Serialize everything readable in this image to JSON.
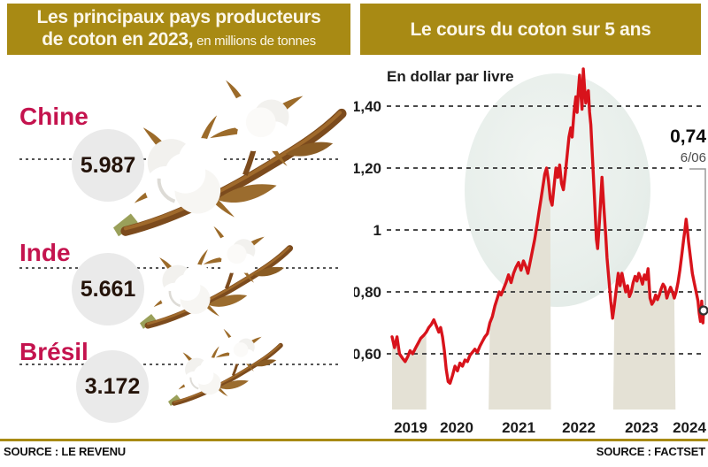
{
  "header": {
    "left_title_line1": "Les principaux pays producteurs",
    "left_title_line2_bold": "de coton en 2023,",
    "left_title_line2_sub": " en millions de tonnes",
    "right_title": "Le cours du coton sur 5 ans"
  },
  "producers": [
    {
      "name": "Chine",
      "value": "5.987"
    },
    {
      "name": "Inde",
      "value": "5.661"
    },
    {
      "name": "Brésil",
      "value": "3.172"
    }
  ],
  "chart_data": {
    "type": "line",
    "title": "Le cours du coton sur 5 ans",
    "unit_label": "En dollar par livre",
    "y_ticks": [
      "1,40",
      "1,20",
      "1",
      "0,80",
      "0,60"
    ],
    "y_tick_values": [
      1.4,
      1.2,
      1.0,
      0.8,
      0.6
    ],
    "x_tick_labels": [
      "2019",
      "2020",
      "2021",
      "2022",
      "2023",
      "2024"
    ],
    "x_domain": [
      2019.45,
      2024.45
    ],
    "ylim": [
      0.45,
      1.56
    ],
    "grid": "dashed-horizontal",
    "legend": "none",
    "line_color": "#d8131b",
    "band_color": "#e4e1d5",
    "shaded_bands": [
      [
        2019.45,
        2020.0
      ],
      [
        2021.0,
        2022.0
      ],
      [
        2023.0,
        2024.0
      ]
    ],
    "last_point": {
      "label": "0,74",
      "date": "6/06",
      "value": 0.74
    },
    "series": [
      {
        "name": "Cours du coton (dollar par livre)",
        "x": [
          2019.45,
          2019.49,
          2019.53,
          2019.57,
          2019.62,
          2019.66,
          2019.7,
          2019.74,
          2019.78,
          2019.83,
          2019.87,
          2019.91,
          2019.96,
          2020.0,
          2020.04,
          2020.08,
          2020.12,
          2020.16,
          2020.2,
          2020.23,
          2020.26,
          2020.29,
          2020.32,
          2020.35,
          2020.38,
          2020.42,
          2020.46,
          2020.5,
          2020.54,
          2020.58,
          2020.62,
          2020.66,
          2020.7,
          2020.74,
          2020.78,
          2020.82,
          2020.86,
          2020.9,
          2020.94,
          2020.98,
          2021.02,
          2021.06,
          2021.1,
          2021.14,
          2021.17,
          2021.2,
          2021.24,
          2021.28,
          2021.32,
          2021.36,
          2021.4,
          2021.44,
          2021.48,
          2021.52,
          2021.56,
          2021.6,
          2021.63,
          2021.66,
          2021.7,
          2021.74,
          2021.78,
          2021.81,
          2021.84,
          2021.87,
          2021.9,
          2021.93,
          2021.96,
          2021.99,
          2022.02,
          2022.05,
          2022.08,
          2022.11,
          2022.14,
          2022.17,
          2022.2,
          2022.23,
          2022.26,
          2022.29,
          2022.32,
          2022.34,
          2022.37,
          2022.4,
          2022.42,
          2022.44,
          2022.46,
          2022.48,
          2022.5,
          2022.52,
          2022.54,
          2022.56,
          2022.58,
          2022.6,
          2022.62,
          2022.64,
          2022.67,
          2022.7,
          2022.73,
          2022.75,
          2022.78,
          2022.8,
          2022.82,
          2022.85,
          2022.88,
          2022.9,
          2022.93,
          2022.96,
          2022.99,
          2023.02,
          2023.05,
          2023.08,
          2023.11,
          2023.14,
          2023.17,
          2023.2,
          2023.23,
          2023.26,
          2023.29,
          2023.32,
          2023.35,
          2023.38,
          2023.41,
          2023.44,
          2023.47,
          2023.5,
          2023.53,
          2023.56,
          2023.59,
          2023.62,
          2023.65,
          2023.68,
          2023.71,
          2023.74,
          2023.77,
          2023.8,
          2023.83,
          2023.86,
          2023.89,
          2023.92,
          2023.95,
          2023.98,
          2024.01,
          2024.04,
          2024.07,
          2024.1,
          2024.13,
          2024.15,
          2024.17,
          2024.19,
          2024.21,
          2024.24,
          2024.27,
          2024.3,
          2024.33,
          2024.36,
          2024.38,
          2024.4,
          2024.42,
          2024.44,
          2024.45
        ],
        "y": [
          0.655,
          0.62,
          0.655,
          0.6,
          0.585,
          0.575,
          0.59,
          0.61,
          0.6,
          0.62,
          0.635,
          0.65,
          0.66,
          0.67,
          0.685,
          0.695,
          0.71,
          0.69,
          0.67,
          0.685,
          0.655,
          0.61,
          0.55,
          0.51,
          0.505,
          0.53,
          0.56,
          0.545,
          0.57,
          0.56,
          0.58,
          0.575,
          0.595,
          0.605,
          0.615,
          0.605,
          0.625,
          0.64,
          0.655,
          0.665,
          0.7,
          0.72,
          0.755,
          0.78,
          0.8,
          0.79,
          0.81,
          0.83,
          0.855,
          0.83,
          0.86,
          0.88,
          0.895,
          0.87,
          0.9,
          0.88,
          0.86,
          0.89,
          0.93,
          0.97,
          1.02,
          1.06,
          1.1,
          1.14,
          1.18,
          1.2,
          1.16,
          1.1,
          1.08,
          1.14,
          1.2,
          1.17,
          1.21,
          1.15,
          1.13,
          1.18,
          1.24,
          1.3,
          1.33,
          1.3,
          1.38,
          1.43,
          1.38,
          1.45,
          1.5,
          1.44,
          1.39,
          1.52,
          1.46,
          1.41,
          1.44,
          1.45,
          1.38,
          1.34,
          1.22,
          1.1,
          0.97,
          0.94,
          1.03,
          1.1,
          1.17,
          1.07,
          0.98,
          0.91,
          0.84,
          0.77,
          0.715,
          0.76,
          0.81,
          0.86,
          0.82,
          0.86,
          0.83,
          0.8,
          0.82,
          0.785,
          0.8,
          0.83,
          0.85,
          0.835,
          0.86,
          0.845,
          0.825,
          0.855,
          0.84,
          0.875,
          0.78,
          0.76,
          0.77,
          0.79,
          0.775,
          0.79,
          0.81,
          0.825,
          0.815,
          0.78,
          0.8,
          0.815,
          0.8,
          0.78,
          0.8,
          0.83,
          0.87,
          0.92,
          0.97,
          1.0,
          1.035,
          1.0,
          0.96,
          0.91,
          0.86,
          0.83,
          0.8,
          0.77,
          0.73,
          0.705,
          0.77,
          0.7,
          0.74
        ]
      }
    ]
  },
  "footer": {
    "source_left": "SOURCE : LE REVENU",
    "source_right": "SOURCE : FACTSET"
  },
  "colors": {
    "gold": "#a88a14",
    "crimson": "#c4134e",
    "red_line": "#d8131b",
    "band_beige": "#e4e1d5"
  }
}
